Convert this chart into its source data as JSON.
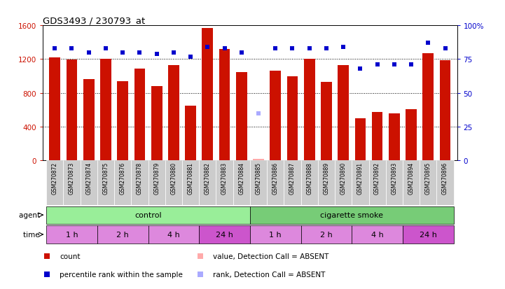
{
  "title": "GDS3493 / 230793_at",
  "samples": [
    "GSM270872",
    "GSM270873",
    "GSM270874",
    "GSM270875",
    "GSM270876",
    "GSM270878",
    "GSM270879",
    "GSM270880",
    "GSM270881",
    "GSM270882",
    "GSM270883",
    "GSM270884",
    "GSM270885",
    "GSM270886",
    "GSM270887",
    "GSM270888",
    "GSM270889",
    "GSM270890",
    "GSM270891",
    "GSM270892",
    "GSM270893",
    "GSM270894",
    "GSM270895",
    "GSM270896"
  ],
  "counts": [
    1220,
    1195,
    960,
    1205,
    940,
    1090,
    880,
    1130,
    650,
    1570,
    1320,
    1050,
    20,
    1060,
    1000,
    1200,
    930,
    1130,
    500,
    570,
    560,
    610,
    1270,
    1190
  ],
  "percentile_ranks": [
    83,
    83,
    80,
    83,
    80,
    80,
    79,
    80,
    77,
    84,
    83,
    80,
    35,
    83,
    83,
    83,
    83,
    84,
    68,
    71,
    71,
    71,
    87,
    83
  ],
  "absent_count_indices": [
    12
  ],
  "absent_rank_indices": [
    12
  ],
  "bar_color": "#cc1100",
  "rank_color": "#0000cc",
  "absent_count_color": "#ffaaaa",
  "absent_rank_color": "#aaaaff",
  "ylim_left": [
    0,
    1600
  ],
  "ylim_right": [
    0,
    100
  ],
  "yticks_left": [
    0,
    400,
    800,
    1200,
    1600
  ],
  "yticks_right": [
    0,
    25,
    50,
    75,
    100
  ],
  "yticklabels_right": [
    "0",
    "25",
    "50",
    "75",
    "100%"
  ],
  "agent_groups": [
    {
      "label": "control",
      "start": 0,
      "end": 11,
      "color": "#99ee99"
    },
    {
      "label": "cigarette smoke",
      "start": 12,
      "end": 23,
      "color": "#77cc77"
    }
  ],
  "time_groups": [
    {
      "label": "1 h",
      "start": 0,
      "end": 2,
      "color": "#dd88dd"
    },
    {
      "label": "2 h",
      "start": 3,
      "end": 5,
      "color": "#dd88dd"
    },
    {
      "label": "4 h",
      "start": 6,
      "end": 8,
      "color": "#dd88dd"
    },
    {
      "label": "24 h",
      "start": 9,
      "end": 11,
      "color": "#cc55cc"
    },
    {
      "label": "1 h",
      "start": 12,
      "end": 14,
      "color": "#dd88dd"
    },
    {
      "label": "2 h",
      "start": 15,
      "end": 17,
      "color": "#dd88dd"
    },
    {
      "label": "4 h",
      "start": 18,
      "end": 20,
      "color": "#dd88dd"
    },
    {
      "label": "24 h",
      "start": 21,
      "end": 23,
      "color": "#cc55cc"
    }
  ],
  "legend_items": [
    {
      "label": "count",
      "color": "#cc1100",
      "marker": "s"
    },
    {
      "label": "percentile rank within the sample",
      "color": "#0000cc",
      "marker": "s"
    },
    {
      "label": "value, Detection Call = ABSENT",
      "color": "#ffaaaa",
      "marker": "s"
    },
    {
      "label": "rank, Detection Call = ABSENT",
      "color": "#aaaaff",
      "marker": "s"
    }
  ],
  "bg_color": "#ffffff",
  "sample_box_color": "#cccccc",
  "grid_dotline_color": "#000000",
  "grid_hlines": [
    400,
    800,
    1200
  ]
}
